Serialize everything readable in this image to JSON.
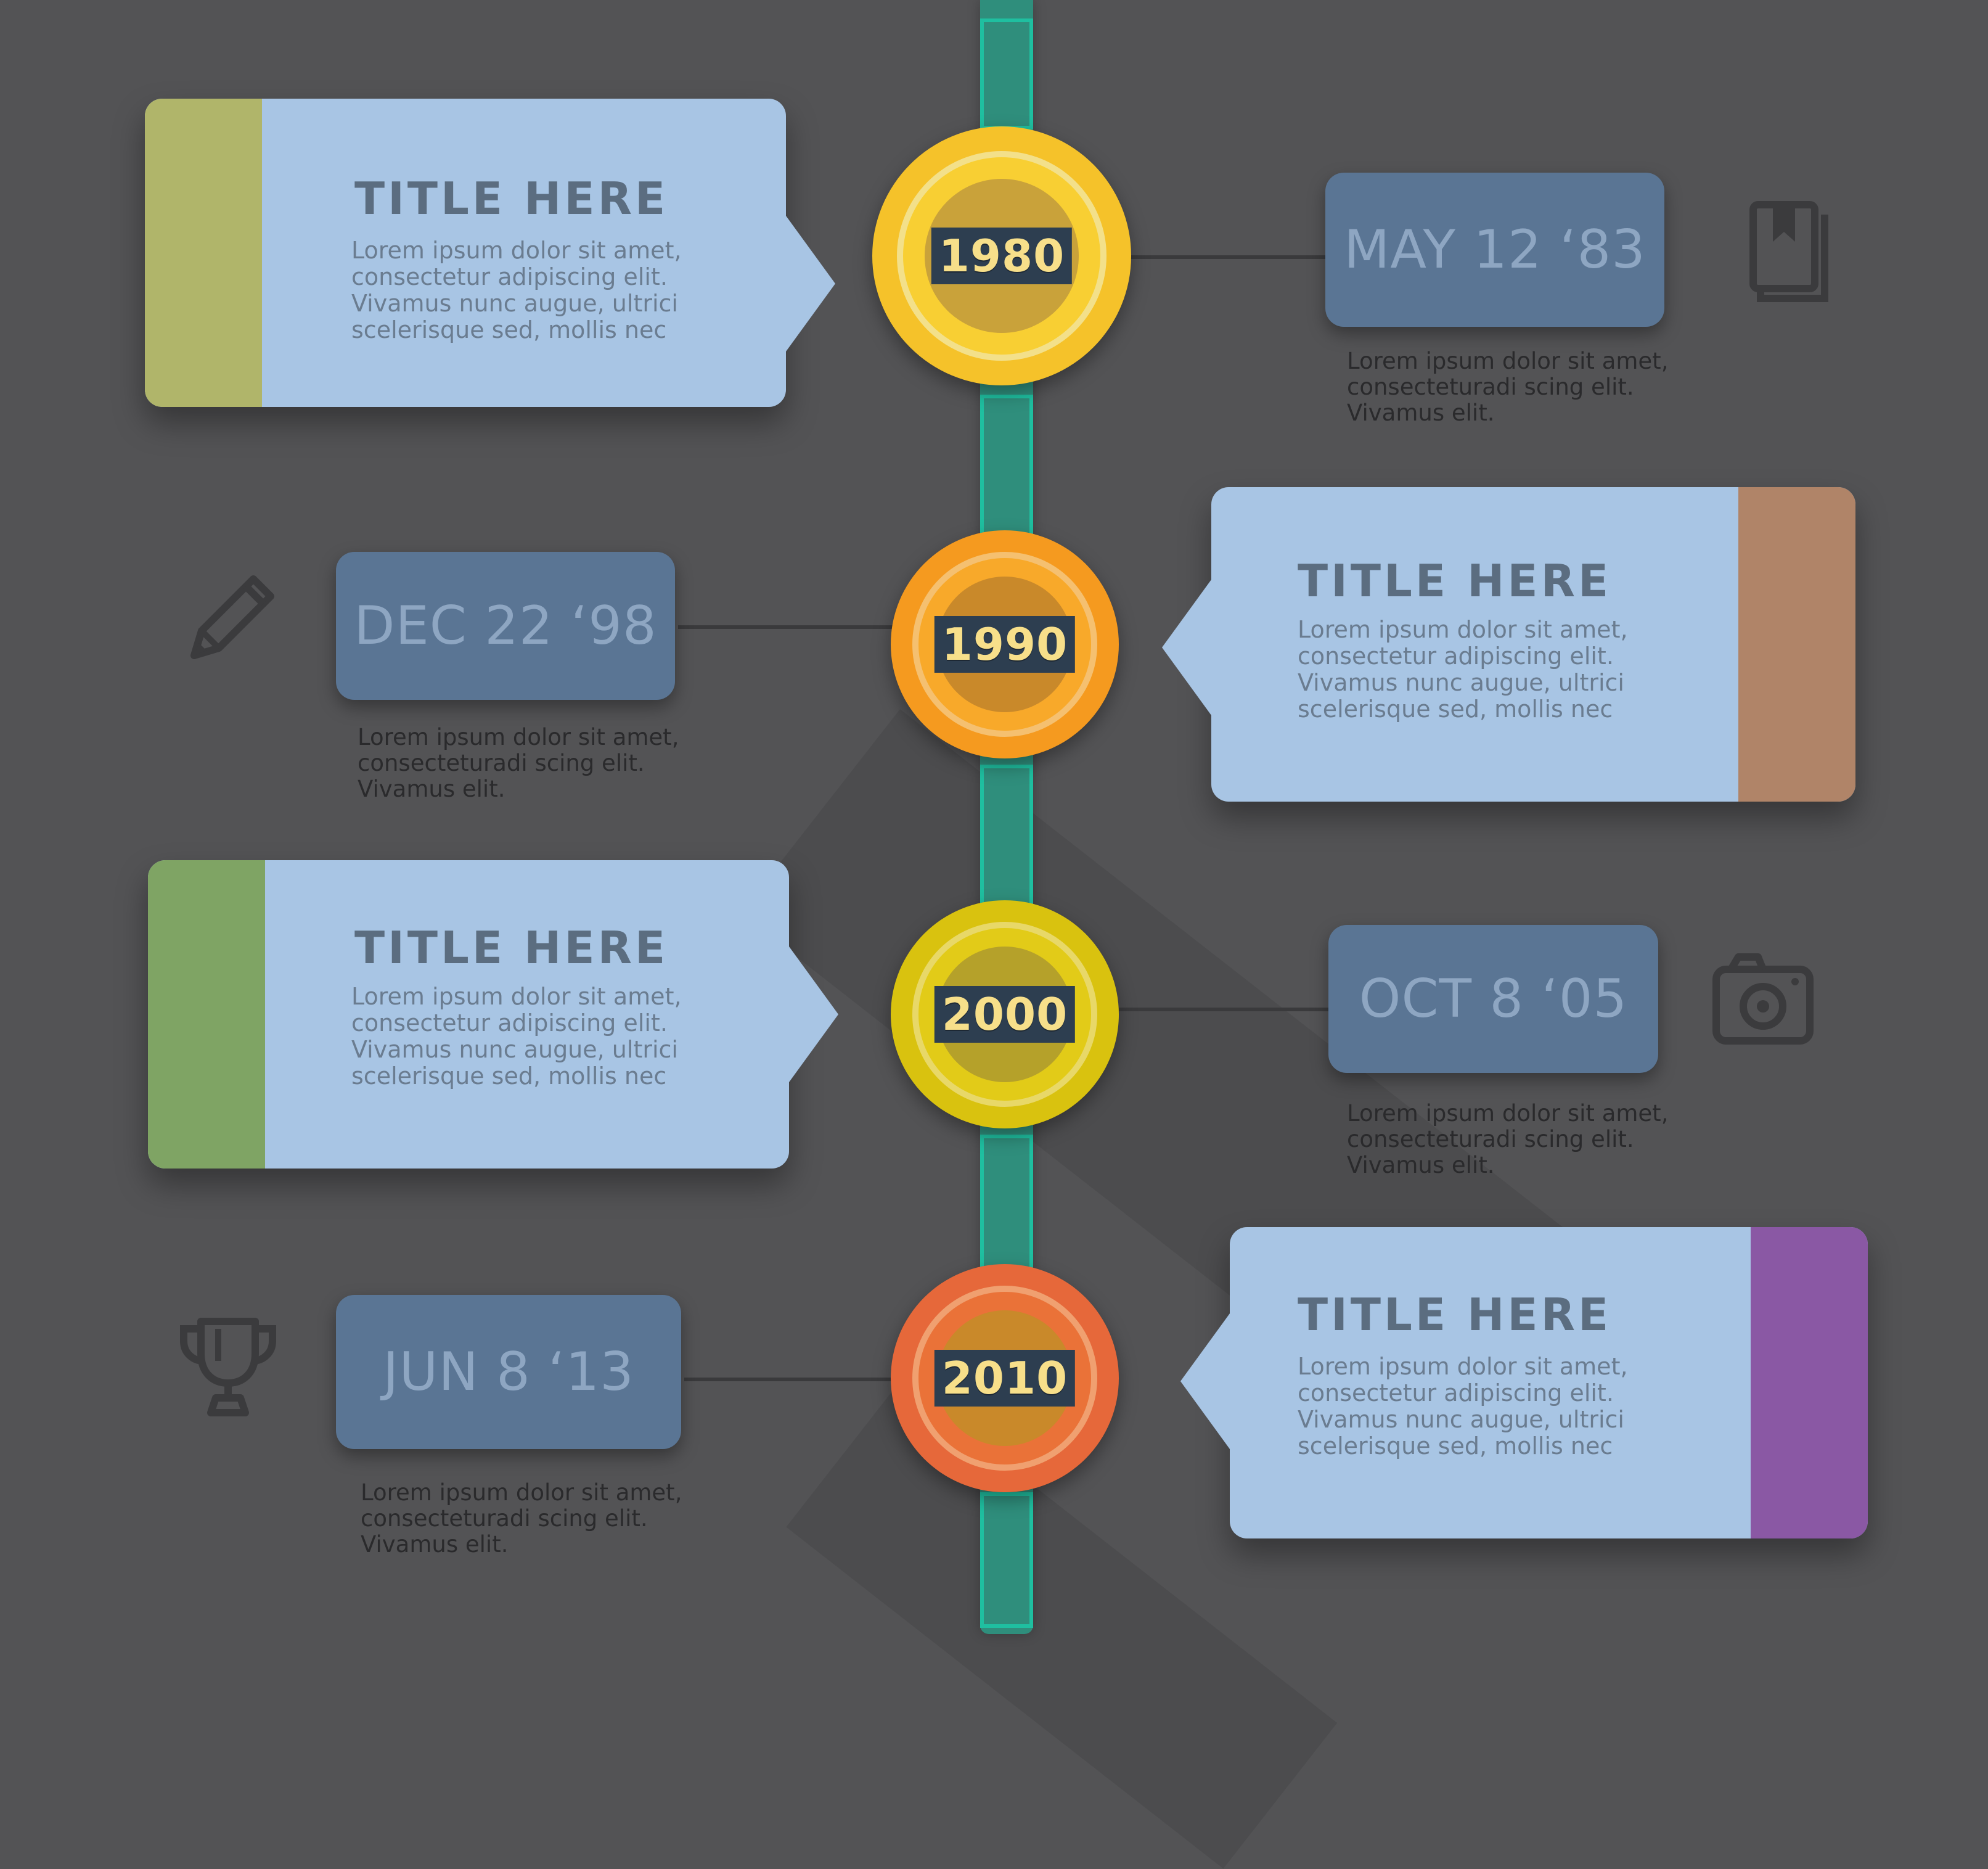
{
  "colors": {
    "background": "#535355",
    "spine": "#2f8e7c",
    "card": "#a8c5e4",
    "pill": "#5a7594",
    "pill_text": "#8ea6c2"
  },
  "events": [
    {
      "year": "1980",
      "date": "MAY 12 ‘83",
      "caption": "Lorem ipsum dolor sit amet, consecteturadi scing elit. Vivamus elit.",
      "title": "TITLE HERE",
      "body": "Lorem ipsum dolor sit amet, consectetur adipiscing elit. Vivamus nunc augue, ultrici scelerisque sed, mollis nec",
      "accent": "#b0b56a",
      "medal_outer": "#f5c22a",
      "medal_inner": "#f8cf33",
      "icon": "bookmark-book-icon"
    },
    {
      "year": "1990",
      "date": "DEC 22 ‘98",
      "caption": "Lorem ipsum dolor sit amet, consecteturadi scing elit. Vivamus elit.",
      "title": "TITLE HERE",
      "body": "Lorem ipsum dolor sit amet, consectetur adipiscing elit. Vivamus nunc augue, ultrici scelerisque sed, mollis nec",
      "accent": "#b08468",
      "medal_outer": "#f59a1f",
      "medal_inner": "#f8a92a",
      "icon": "pencil-icon"
    },
    {
      "year": "2000",
      "date": "OCT 8 ‘05",
      "caption": "Lorem ipsum dolor sit amet, consecteturadi scing elit. Vivamus elit.",
      "title": "TITLE HERE",
      "body": "Lorem ipsum dolor sit amet, consectetur adipiscing elit. Vivamus nunc augue, ultrici scelerisque sed, mollis nec",
      "accent": "#7fa464",
      "medal_outer": "#d9c20f",
      "medal_inner": "#e2cb18",
      "icon": "camera-icon"
    },
    {
      "year": "2010",
      "date": "JUN 8 ‘13",
      "caption": "Lorem ipsum dolor sit amet, consecteturadi scing elit. Vivamus elit.",
      "title": "TITLE HERE",
      "body": "Lorem ipsum dolor sit amet, consectetur adipiscing elit. Vivamus nunc augue, ultrici scelerisque sed, mollis nec",
      "accent": "#8a58a4",
      "medal_outer": "#e6683a",
      "medal_inner": "#ea7238",
      "icon": "trophy-icon"
    }
  ]
}
